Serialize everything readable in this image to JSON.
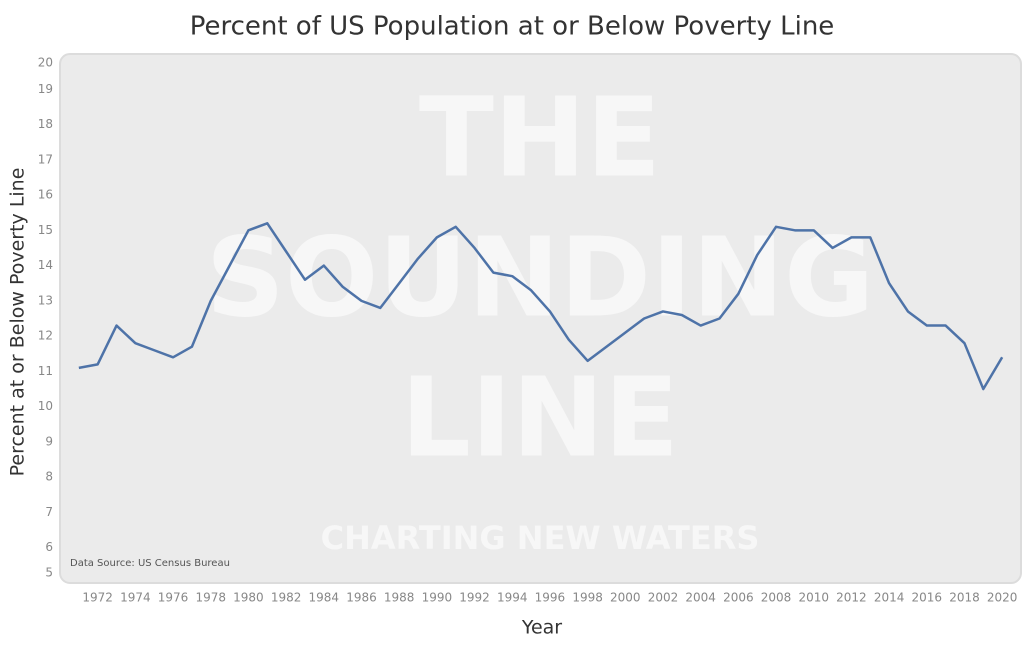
{
  "chart_data": {
    "type": "line",
    "title": "Percent of US Population at or Below Poverty Line",
    "x_label": "Year",
    "y_label": "Percent at or Below Poverty Line",
    "annotation": "Data Source: US Census Bureau",
    "watermark": [
      "THE",
      "SOUNDING",
      "LINE",
      "CHARTING NEW WATERS"
    ],
    "x": [
      1971,
      1972,
      1973,
      1974,
      1975,
      1976,
      1977,
      1978,
      1979,
      1980,
      1981,
      1982,
      1983,
      1984,
      1985,
      1986,
      1987,
      1988,
      1989,
      1990,
      1991,
      1992,
      1993,
      1994,
      1995,
      1996,
      1997,
      1998,
      1999,
      2000,
      2001,
      2002,
      2003,
      2004,
      2005,
      2006,
      2007,
      2008,
      2009,
      2010,
      2011,
      2012,
      2013,
      2014,
      2015,
      2016,
      2017,
      2018,
      2019,
      2020
    ],
    "series": [
      {
        "name": "Percent at or Below Poverty Line",
        "color": "#4e73a8",
        "values": [
          11.1,
          11.2,
          12.3,
          11.8,
          11.6,
          11.4,
          11.7,
          13.0,
          14.0,
          15.0,
          15.2,
          14.4,
          13.6,
          14.0,
          13.4,
          13.0,
          12.8,
          13.5,
          14.2,
          14.8,
          15.1,
          14.5,
          13.8,
          13.7,
          13.3,
          12.7,
          11.9,
          11.3,
          11.7,
          12.1,
          12.5,
          12.7,
          12.6,
          12.3,
          12.5,
          13.2,
          14.3,
          15.1,
          15.0,
          15.0,
          14.5,
          14.8,
          14.8,
          13.5,
          12.7,
          12.3,
          12.3,
          11.8,
          10.5,
          11.4
        ]
      }
    ],
    "xlim": [
      1970,
      2021
    ],
    "xticks": [
      1972,
      1974,
      1976,
      1978,
      1980,
      1982,
      1984,
      1986,
      1988,
      1990,
      1992,
      1994,
      1996,
      1998,
      2000,
      2002,
      2004,
      2006,
      2008,
      2010,
      2012,
      2014,
      2016,
      2018,
      2020
    ],
    "ylim": [
      5,
      20
    ],
    "yticks": [
      5,
      6,
      7,
      8,
      9,
      10,
      11,
      12,
      13,
      14,
      15,
      16,
      17,
      18,
      19,
      20
    ],
    "grid": false
  }
}
